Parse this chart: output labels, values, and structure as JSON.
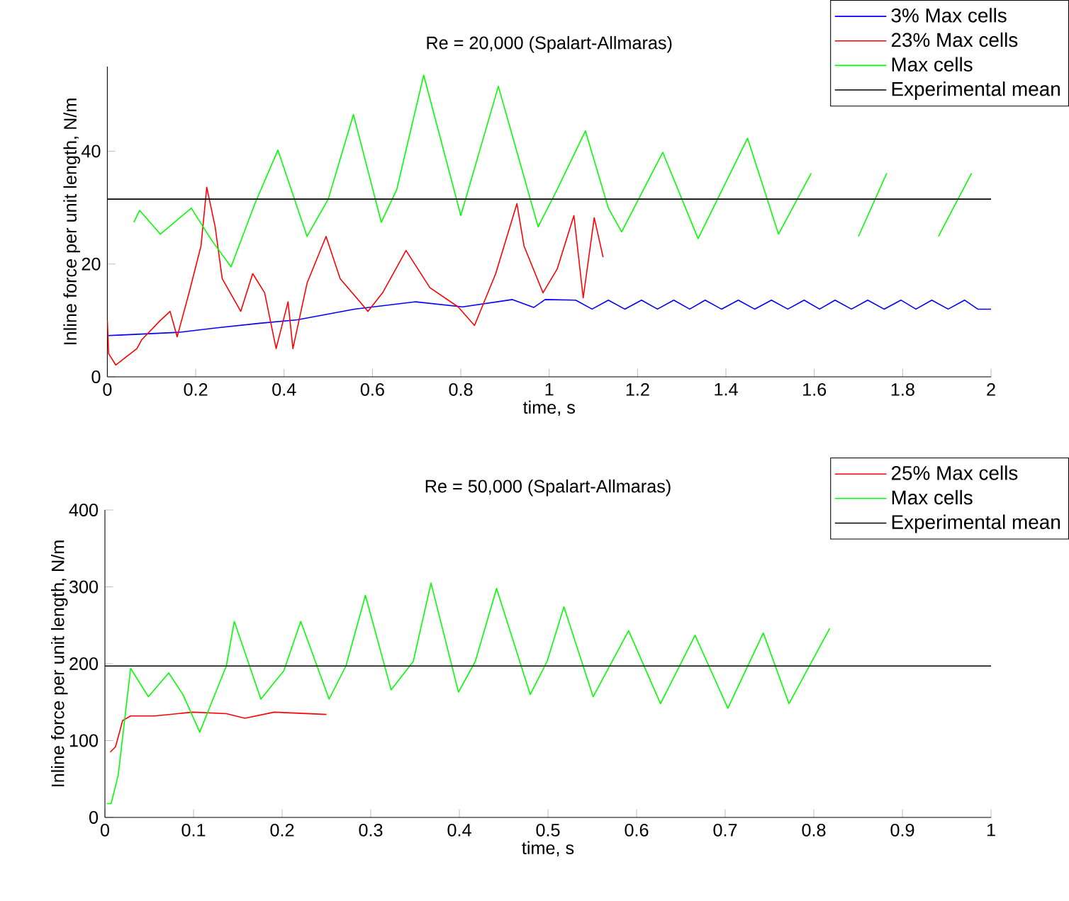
{
  "chart_data": [
    {
      "type": "line",
      "title": "Re = 20,000 (Spalart-Allmaras)",
      "xlabel": "time, s",
      "ylabel": "Inline force per unit length, N/m",
      "xlim": [
        0,
        2
      ],
      "ylim": [
        0,
        55
      ],
      "xticks": [
        0,
        0.2,
        0.4,
        0.6,
        0.8,
        1,
        1.2,
        1.4,
        1.6,
        1.8,
        2
      ],
      "yticks": [
        0,
        20,
        40
      ],
      "grid": false,
      "legend": "top right",
      "line_style": "solid",
      "series": [
        {
          "name": "3% Max cells",
          "color": "#0000ff",
          "x": [
            0,
            0.163,
            0.249,
            0.345,
            0.43,
            0.559,
            0.698,
            0.804,
            0.917,
            0.965,
            0.991,
            1.06,
            1.097,
            1.134,
            1.171,
            1.209,
            1.245,
            1.282,
            1.318,
            1.353,
            1.39,
            1.428,
            1.465,
            1.503,
            1.54,
            1.577,
            1.612,
            1.647,
            1.684,
            1.721,
            1.758,
            1.796,
            1.83,
            1.866,
            1.903,
            1.94,
            1.97,
            2
          ],
          "values": [
            7.3,
            7.9,
            8.7,
            9.5,
            10.1,
            12,
            13.3,
            12.4,
            13.7,
            12.3,
            13.7,
            13.6,
            12,
            13.6,
            12,
            13.6,
            12,
            13.6,
            12,
            13.6,
            12,
            13.6,
            12,
            13.6,
            12,
            13.6,
            12,
            13.6,
            12,
            13.6,
            12,
            13.6,
            12,
            13.6,
            12,
            13.6,
            12,
            12
          ]
        },
        {
          "name": "23% Max cells",
          "color": "#ff0000",
          "x": [
            0,
            0.003,
            0.019,
            0.067,
            0.078,
            0.12,
            0.142,
            0.158,
            0.185,
            0.212,
            0.225,
            0.244,
            0.26,
            0.302,
            0.329,
            0.356,
            0.382,
            0.409,
            0.42,
            0.452,
            0.495,
            0.527,
            0.59,
            0.623,
            0.676,
            0.73,
            0.794,
            0.831,
            0.879,
            0.927,
            0.943,
            0.986,
            1.018,
            1.056,
            1.077,
            1.102,
            1.122
          ],
          "values": [
            10,
            4.1,
            2.1,
            5,
            6.6,
            10,
            11.6,
            7.1,
            14.9,
            23.2,
            33.6,
            26.6,
            17.4,
            11.6,
            18.3,
            14.9,
            5,
            13.3,
            5,
            16.6,
            24.9,
            17.4,
            11.6,
            14.9,
            22.4,
            15.8,
            12.4,
            9.1,
            18.3,
            30.7,
            23.2,
            14.9,
            19.1,
            28.6,
            14,
            28.2,
            21.2
          ]
        },
        {
          "name": "Max cells",
          "color": "#00ff00",
          "x": [
            0.06,
            0.073,
            0.12,
            0.19,
            0.238,
            0.28,
            0.334,
            0.386,
            0.452,
            0.5,
            0.557,
            0.62,
            0.655,
            0.716,
            0.8,
            0.885,
            0.975,
            1.018,
            1.082,
            1.134,
            1.164,
            1.257,
            1.337,
            1.449,
            1.519,
            1.593,
            1.65,
            1.7,
            1.764,
            1.82,
            1.881,
            1.956
          ],
          "values": [
            27.4,
            29.5,
            25.3,
            29.9,
            24,
            19.5,
            30.7,
            40.2,
            24.9,
            31.5,
            46.5,
            27.4,
            33.2,
            53.5,
            28.6,
            51.5,
            26.6,
            33.2,
            43.6,
            29.9,
            25.7,
            39.8,
            24.5,
            42.3,
            25.3,
            36.1,
            null,
            24.9,
            36.1,
            null,
            24.9,
            36.1
          ]
        },
        {
          "name": "Experimental mean",
          "color": "#000000",
          "x": [
            0,
            2
          ],
          "values": [
            31.5,
            31.5
          ]
        }
      ]
    },
    {
      "type": "line",
      "title": "Re = 50,000 (Spalart-Allmaras)",
      "xlabel": "time, s",
      "ylabel": "Inline force per unit length, N/m",
      "xlim": [
        0,
        1
      ],
      "ylim": [
        0,
        400
      ],
      "xticks": [
        0,
        0.1,
        0.2,
        0.3,
        0.4,
        0.5,
        0.6,
        0.7,
        0.8,
        0.9,
        1
      ],
      "yticks": [
        0,
        100,
        200,
        300,
        400
      ],
      "grid": false,
      "legend": "top right",
      "line_style": "solid",
      "series": [
        {
          "name": "25% Max cells",
          "color": "#ff0000",
          "x": [
            0.006,
            0.012,
            0.02,
            0.029,
            0.056,
            0.099,
            0.137,
            0.158,
            0.191,
            0.25
          ],
          "values": [
            85,
            92,
            126,
            132,
            132,
            137,
            135,
            129,
            137,
            134
          ]
        },
        {
          "name": "Max cells",
          "color": "#00ff00",
          "x": [
            0.002,
            0.007,
            0.015,
            0.029,
            0.049,
            0.072,
            0.088,
            0.107,
            0.137,
            0.146,
            0.176,
            0.202,
            0.221,
            0.253,
            0.272,
            0.294,
            0.323,
            0.348,
            0.368,
            0.399,
            0.418,
            0.442,
            0.48,
            0.499,
            0.518,
            0.551,
            0.591,
            0.627,
            0.666,
            0.703,
            0.743,
            0.772,
            0.818
          ],
          "values": [
            18,
            18,
            55,
            194,
            157,
            188,
            160,
            111,
            197,
            255,
            154,
            191,
            255,
            154,
            197,
            289,
            166,
            203,
            305,
            163,
            203,
            298,
            160,
            203,
            274,
            157,
            243,
            148,
            237,
            142,
            240,
            148,
            246
          ]
        },
        {
          "name": "Experimental mean",
          "color": "#000000",
          "x": [
            0,
            1
          ],
          "values": [
            197,
            197
          ]
        }
      ]
    }
  ]
}
